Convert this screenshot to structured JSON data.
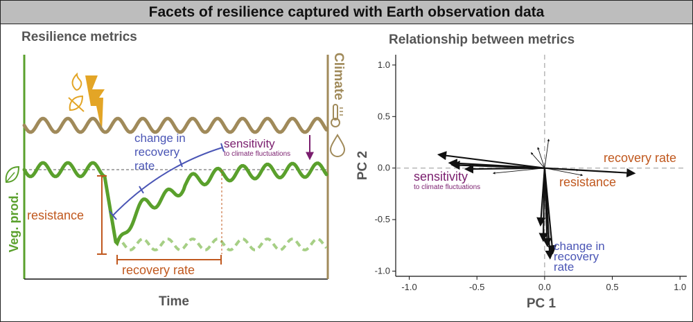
{
  "title": "Facets of resilience captured with Earth observation data",
  "left_panel": {
    "heading": "Resilience metrics",
    "y_axis_label": "Veg. prod.",
    "x_axis_label": "Time",
    "right_axis_label": "Climate",
    "annotations": {
      "resistance": "resistance",
      "recovery_rate": "recovery rate",
      "change_in_recovery_line1": "change in",
      "change_in_recovery_line2": "recovery",
      "change_in_recovery_line3": "rate",
      "sensitivity": "sensitivity",
      "sensitivity_sub": "to climate fluctuations"
    },
    "icons": [
      "fire-icon",
      "leaf-crossed-icon",
      "lightning-icon",
      "thermometer-icon",
      "water-drop-icon",
      "leaf-icon"
    ],
    "colors": {
      "climate": "#a08a5a",
      "vegetation": "#5aa02c",
      "vegetation_counterfactual": "#a6cf85",
      "resistance": "#c0581e",
      "change_in_recovery": "#4a55b5",
      "sensitivity": "#7a1e6e",
      "disturbance": "#e3a526"
    }
  },
  "right_panel": {
    "heading": "Relationship between metrics",
    "chart_data": {
      "type": "scatter",
      "xlabel": "PC 1",
      "ylabel": "PC 2",
      "xlim": [
        -1.1,
        1.05
      ],
      "ylim": [
        -1.05,
        1.1
      ],
      "x_ticks": [
        "-1.0",
        "-0.5",
        "0.0",
        "0.5",
        "1.0"
      ],
      "y_ticks": [
        "1.0",
        "0.5",
        "0.0",
        "-0.5",
        "-1.0"
      ],
      "arrows": [
        {
          "group": "recovery rate",
          "x": 0.66,
          "y": -0.05
        },
        {
          "group": "recovery rate",
          "x": 0.25,
          "y": -0.02
        },
        {
          "group": "recovery rate",
          "x": 0.28,
          "y": -0.07
        },
        {
          "group": "sensitivity",
          "x": -0.78,
          "y": 0.13
        },
        {
          "group": "sensitivity",
          "x": -0.7,
          "y": 0.05
        },
        {
          "group": "sensitivity",
          "x": -0.68,
          "y": 0.03
        },
        {
          "group": "sensitivity",
          "x": -0.58,
          "y": -0.01
        },
        {
          "group": "sensitivity",
          "x": -0.38,
          "y": -0.05
        },
        {
          "group": "change in recovery rate",
          "x": 0.06,
          "y": -0.82
        },
        {
          "group": "change in recovery rate",
          "x": 0.04,
          "y": -0.87
        },
        {
          "group": "change in recovery rate",
          "x": 0.02,
          "y": -0.75
        },
        {
          "group": "change in recovery rate",
          "x": -0.01,
          "y": -0.7
        },
        {
          "group": "change in recovery rate",
          "x": -0.03,
          "y": -0.55
        },
        {
          "group": "other",
          "x": 0.03,
          "y": 0.28
        },
        {
          "group": "other",
          "x": -0.05,
          "y": 0.2
        },
        {
          "group": "other",
          "x": -0.1,
          "y": 0.15
        }
      ],
      "labels": [
        {
          "text": "recovery rate",
          "group": "recovery_rate"
        },
        {
          "text": "resistance",
          "group": "resistance"
        },
        {
          "text": "sensitivity",
          "group": "sensitivity"
        },
        {
          "text": "to climate fluctuations",
          "group": "sensitivity_sub"
        },
        {
          "text": "change in",
          "group": "change"
        },
        {
          "text": "recovery",
          "group": "change"
        },
        {
          "text": "rate",
          "group": "change"
        }
      ]
    }
  }
}
